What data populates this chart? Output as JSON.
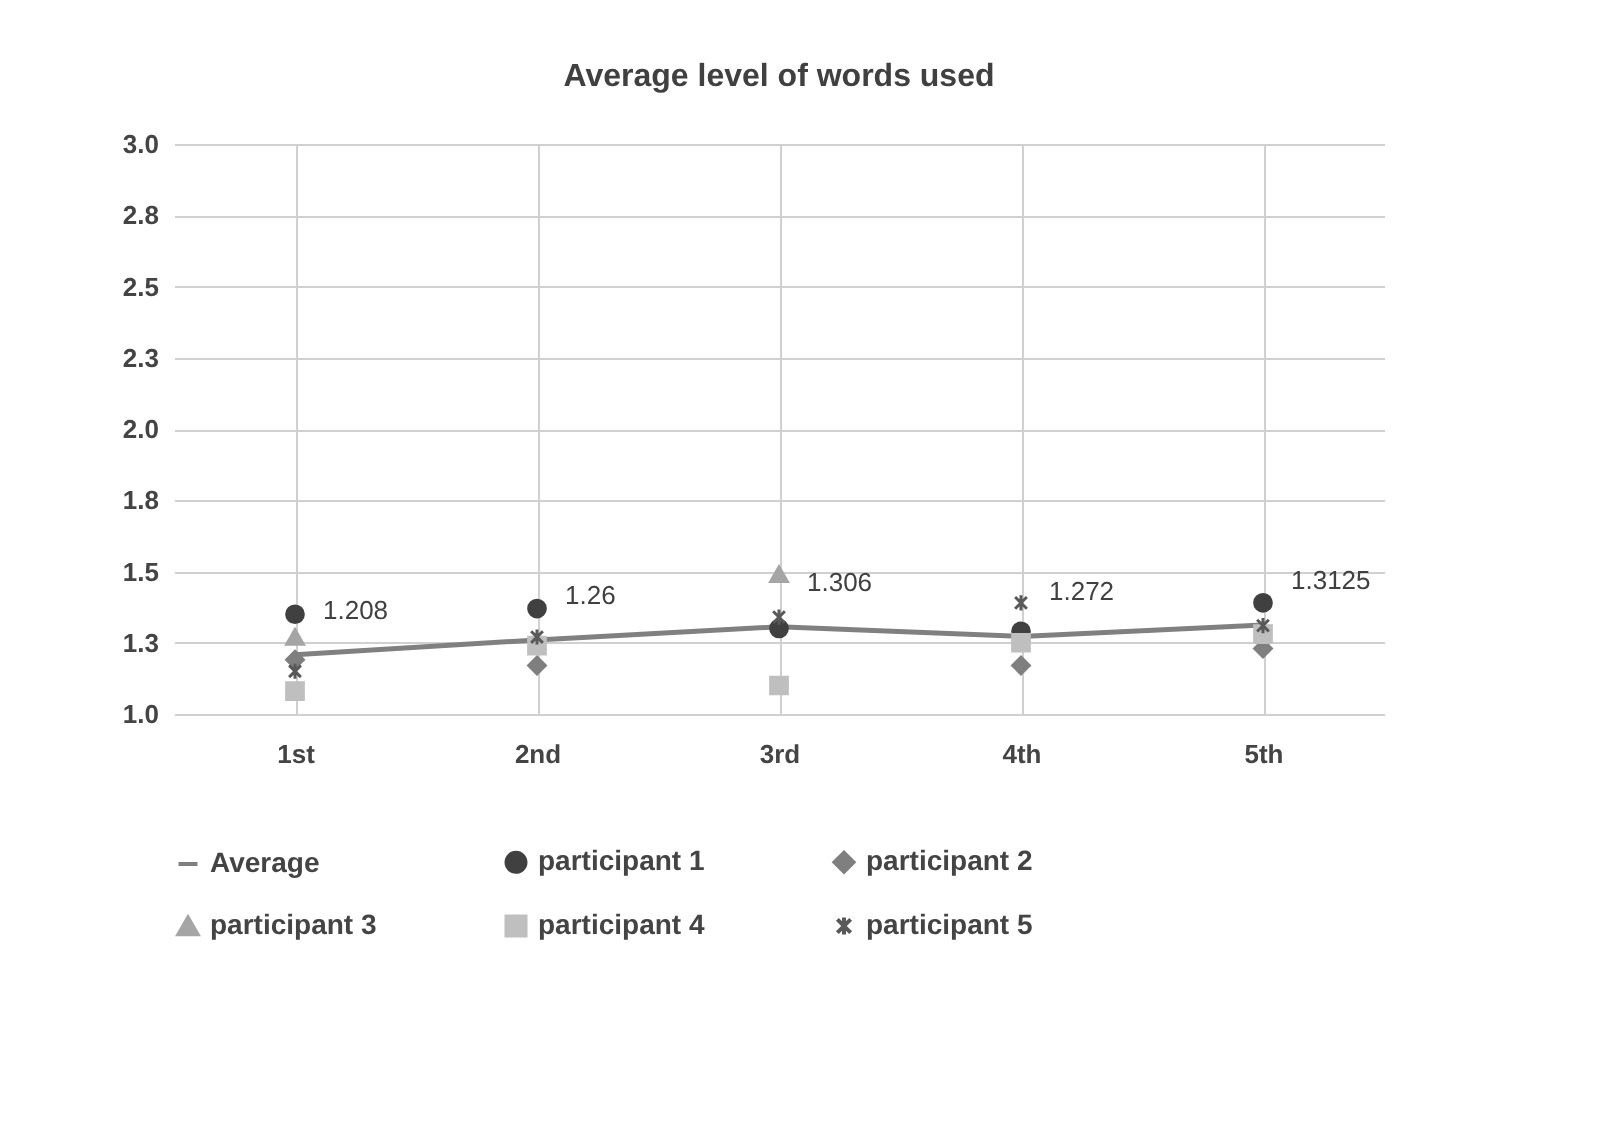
{
  "chart_data": {
    "type": "scatter",
    "title": "Average level of words used",
    "categories": [
      "1st",
      "2nd",
      "3rd",
      "4th",
      "5th"
    ],
    "series": [
      {
        "name": "Average",
        "type": "line",
        "color": "#808080",
        "marker": "none",
        "values": [
          1.208,
          1.26,
          1.306,
          1.272,
          1.3125
        ],
        "value_labels": [
          "1.208",
          "1.26",
          "1.306",
          "1.272",
          "1.3125"
        ]
      },
      {
        "name": "participant 1",
        "color": "#404040",
        "marker": "circle",
        "values": [
          1.35,
          1.37,
          1.3,
          1.29,
          1.39
        ]
      },
      {
        "name": "participant 2",
        "color": "#7f7f7f",
        "marker": "diamond",
        "values": [
          1.19,
          1.17,
          null,
          1.17,
          1.23
        ]
      },
      {
        "name": "participant 3",
        "color": "#a5a5a5",
        "marker": "triangle",
        "values": [
          1.27,
          null,
          1.49,
          null,
          null
        ]
      },
      {
        "name": "participant 4",
        "color": "#bfbfbf",
        "marker": "square",
        "values": [
          1.08,
          1.24,
          1.1,
          1.25,
          1.28
        ]
      },
      {
        "name": "participant 5",
        "color": "#595959",
        "marker": "cross",
        "values": [
          1.15,
          1.27,
          1.34,
          1.39,
          1.31
        ]
      }
    ],
    "ylim": [
      1.0,
      3.0
    ],
    "yticks": [
      {
        "value": 1,
        "label": "1.0"
      },
      {
        "value": 1.25,
        "label": "1.3"
      },
      1.5,
      {
        "value": 1.75,
        "label": "1.8"
      },
      {
        "value": 2,
        "label": "2.0"
      },
      {
        "value": 2.25,
        "label": "2.3"
      },
      2.5,
      {
        "value": 2.75,
        "label": "2.8"
      },
      {
        "value": 3,
        "label": "3.0"
      }
    ],
    "grid": true,
    "legend": "bottom"
  }
}
